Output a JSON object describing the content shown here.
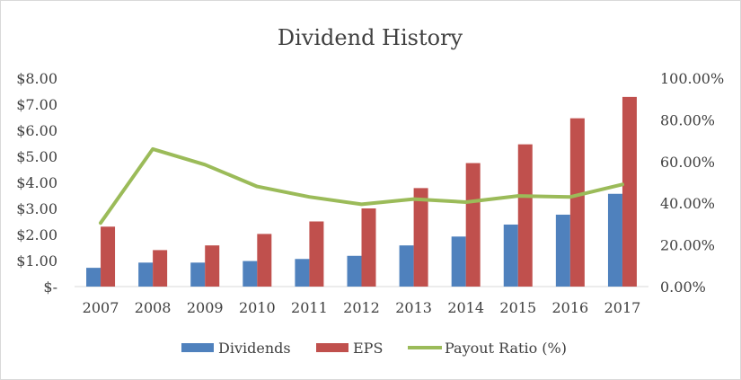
{
  "chart_data": {
    "type": "bar",
    "title": "Dividend History",
    "categories": [
      "2007",
      "2008",
      "2009",
      "2010",
      "2011",
      "2012",
      "2013",
      "2014",
      "2015",
      "2016",
      "2017"
    ],
    "series": [
      {
        "name": "Dividends",
        "type": "bar",
        "axis": "left",
        "color": "#4f81bd",
        "values": [
          0.72,
          0.92,
          0.92,
          0.98,
          1.06,
          1.18,
          1.58,
          1.92,
          2.38,
          2.76,
          3.56
        ]
      },
      {
        "name": "EPS",
        "type": "bar",
        "axis": "left",
        "color": "#c0504d",
        "values": [
          2.3,
          1.4,
          1.58,
          2.02,
          2.5,
          3.0,
          3.78,
          4.74,
          5.46,
          6.46,
          7.28
        ]
      },
      {
        "name": "Payout Ratio (%)",
        "type": "line",
        "axis": "right",
        "color": "#9bbb59",
        "values": [
          30.5,
          66.0,
          58.5,
          48.0,
          43.0,
          39.5,
          42.0,
          40.5,
          43.5,
          43.0,
          49.0
        ]
      }
    ],
    "y_left": {
      "min": 0,
      "max": 8,
      "step": 1,
      "tick_labels": [
        "$-",
        "$1.00",
        "$2.00",
        "$3.00",
        "$4.00",
        "$5.00",
        "$6.00",
        "$7.00",
        "$8.00"
      ]
    },
    "y_right": {
      "min": 0,
      "max": 100,
      "step": 20,
      "tick_labels": [
        "0.00%",
        "20.00%",
        "40.00%",
        "60.00%",
        "80.00%",
        "100.00%"
      ]
    },
    "grid": false,
    "legend_position": "bottom"
  }
}
